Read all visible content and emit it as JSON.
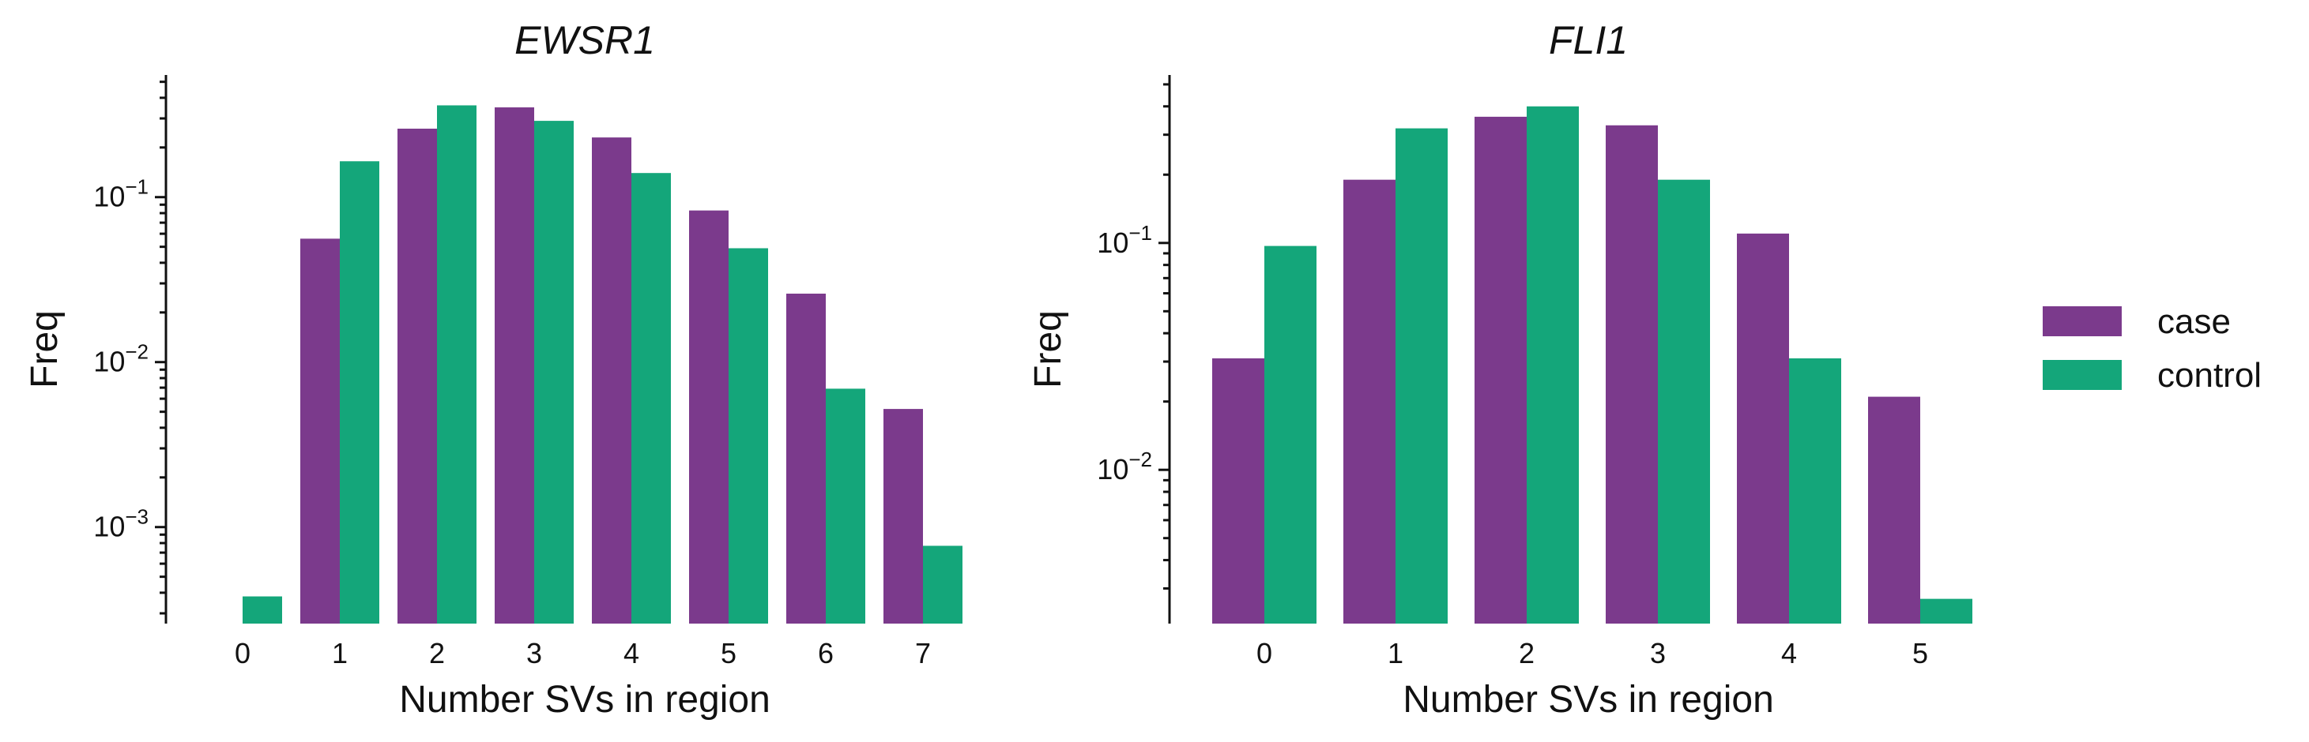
{
  "chart_data": [
    {
      "type": "bar",
      "title": "EWSR1",
      "xlabel": "Number SVs in region",
      "ylabel": "Freq",
      "yscale": "log",
      "ylim": [
        0.00026,
        0.55
      ],
      "yticks": [
        0.001,
        0.01,
        0.1
      ],
      "categories": [
        "0",
        "1",
        "2",
        "3",
        "4",
        "5",
        "6",
        "7"
      ],
      "series": [
        {
          "name": "case",
          "color": "#7B3A8C",
          "values": [
            null,
            0.056,
            0.26,
            0.35,
            0.23,
            0.083,
            0.026,
            0.0052
          ]
        },
        {
          "name": "control",
          "color": "#14A67A",
          "values": [
            0.00038,
            0.165,
            0.36,
            0.29,
            0.14,
            0.049,
            0.0069,
            0.00077
          ]
        }
      ]
    },
    {
      "type": "bar",
      "title": "FLI1",
      "xlabel": "Number SVs in region",
      "ylabel": "Freq",
      "yscale": "log",
      "ylim": [
        0.0021,
        0.55
      ],
      "yticks": [
        0.01,
        0.1
      ],
      "categories": [
        "0",
        "1",
        "2",
        "3",
        "4",
        "5"
      ],
      "series": [
        {
          "name": "case",
          "color": "#7B3A8C",
          "values": [
            0.031,
            0.19,
            0.36,
            0.33,
            0.11,
            0.021
          ]
        },
        {
          "name": "control",
          "color": "#14A67A",
          "values": [
            0.097,
            0.32,
            0.4,
            0.19,
            0.031,
            0.0027
          ]
        }
      ]
    }
  ],
  "legend": {
    "placement": "right",
    "items": [
      {
        "label": "case",
        "color": "#7B3A8C"
      },
      {
        "label": "control",
        "color": "#14A67A"
      }
    ]
  },
  "tick_base": "10"
}
